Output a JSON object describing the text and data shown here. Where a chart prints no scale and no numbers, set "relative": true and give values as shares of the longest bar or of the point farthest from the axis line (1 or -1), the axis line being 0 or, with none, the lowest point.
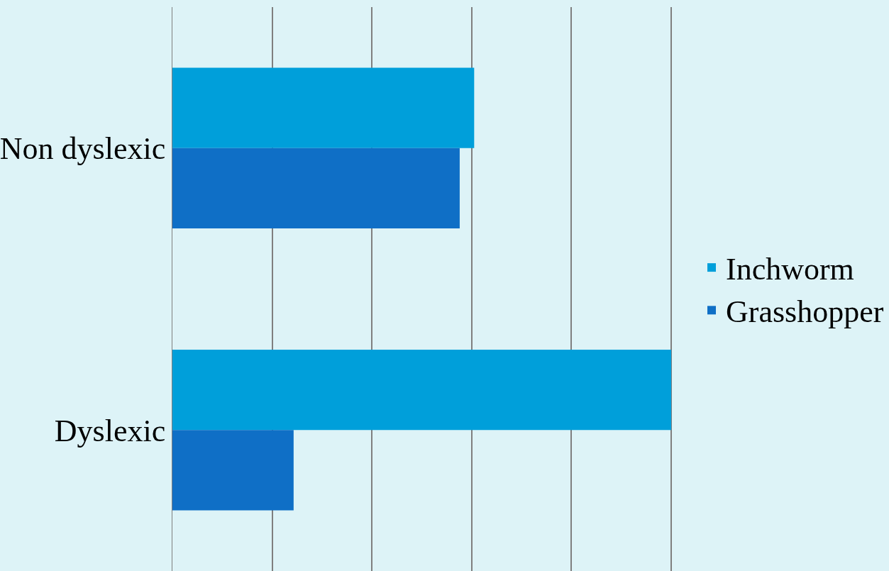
{
  "chart_data": {
    "type": "bar",
    "orientation": "horizontal",
    "relative": true,
    "categories": [
      "Non dyslexic",
      "Dyslexic"
    ],
    "series": [
      {
        "name": "Inchworm",
        "color": "#009fda",
        "values": [
          0.605,
          1
        ]
      },
      {
        "name": "Grasshopper",
        "color": "#0f6fc6",
        "values": [
          0.576,
          0.243
        ]
      }
    ],
    "grid": "x",
    "legend": "right"
  }
}
